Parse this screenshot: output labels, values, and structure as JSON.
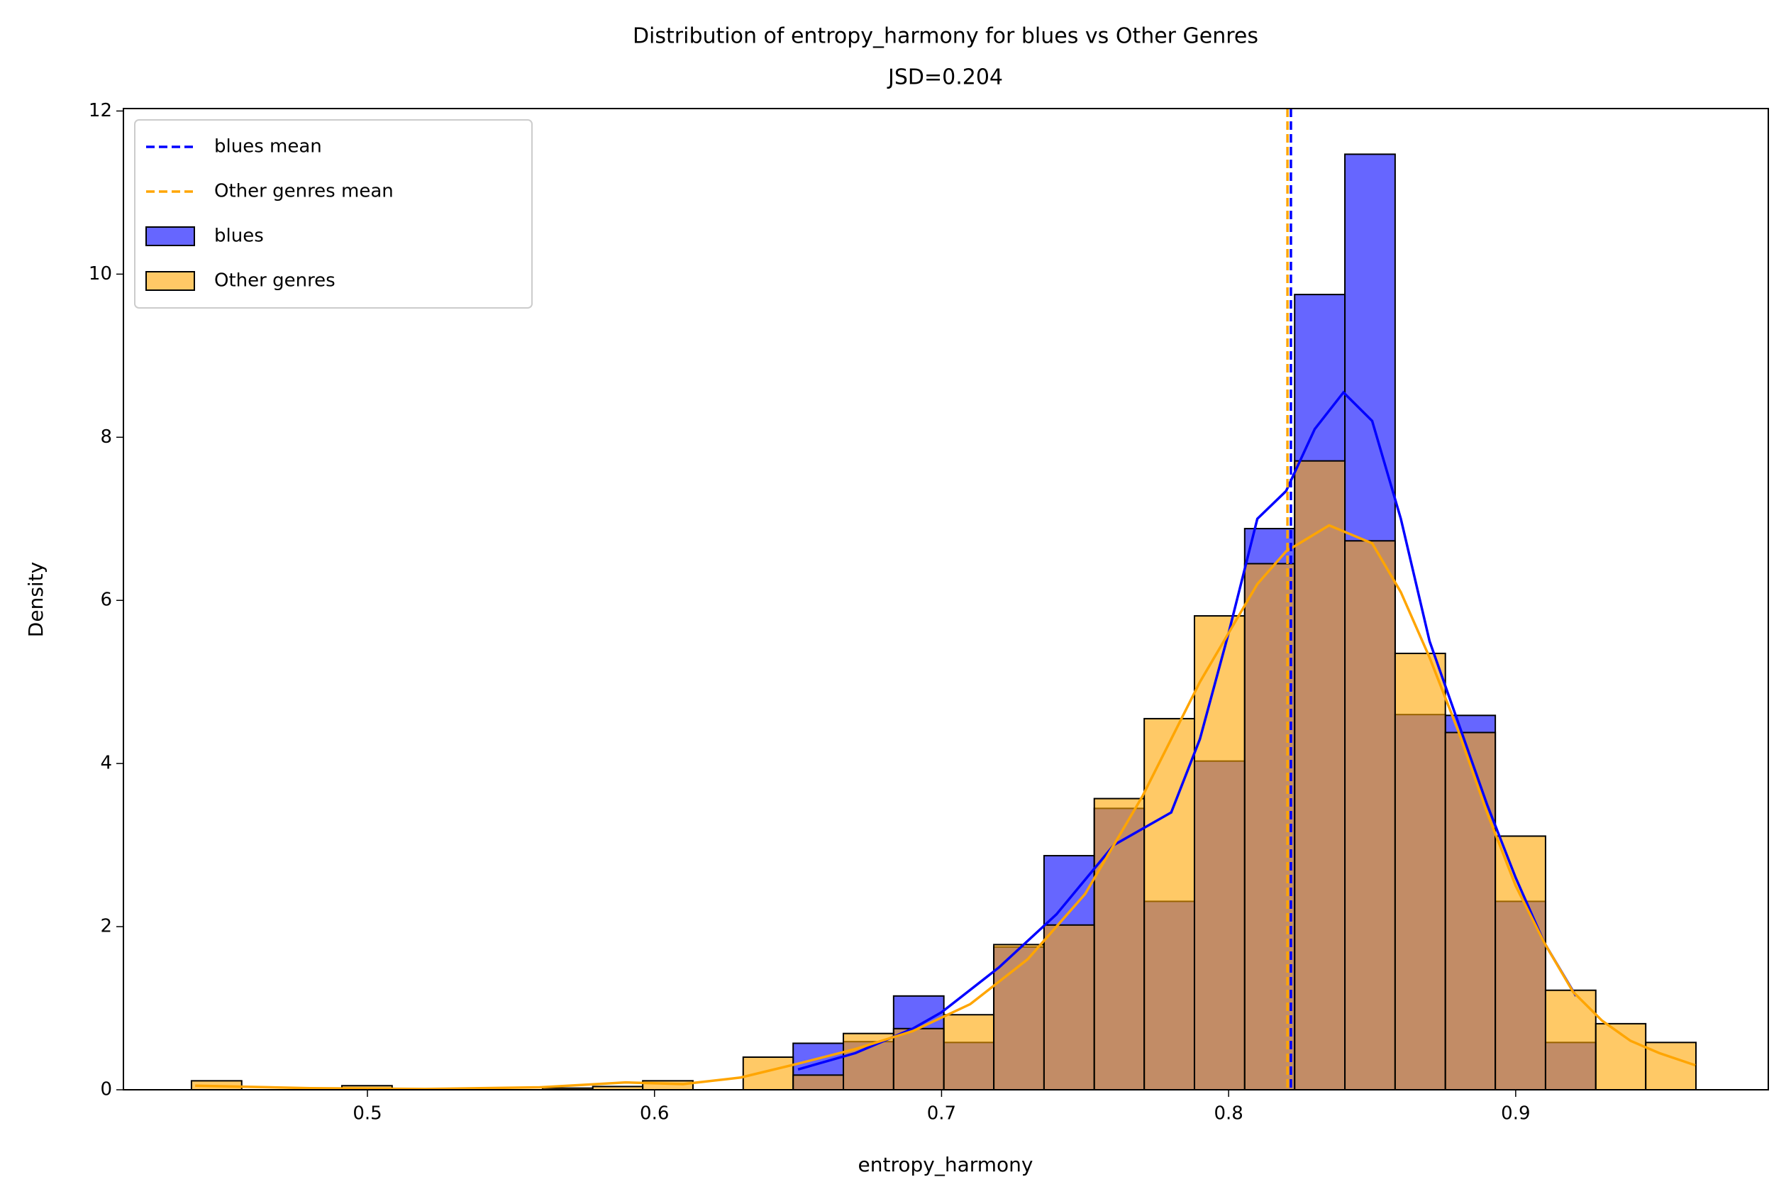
{
  "chart_data": {
    "type": "histogram",
    "title": "Distribution of entropy_harmony for blues vs Other Genres",
    "subtitle": "JSD=0.204",
    "xlabel": "entropy_harmony",
    "ylabel": "Density",
    "xlim": [
      0.415,
      0.988
    ],
    "ylim": [
      0,
      12.03
    ],
    "xticks": [
      0.5,
      0.6,
      0.7,
      0.8,
      0.9
    ],
    "yticks": [
      0,
      2,
      4,
      6,
      8,
      10,
      12
    ],
    "legend": "upper left",
    "bins": [
      0.4387,
      0.4562,
      0.4736,
      0.4911,
      0.5086,
      0.5261,
      0.5435,
      0.561,
      0.5785,
      0.5959,
      0.6134,
      0.6309,
      0.6483,
      0.6658,
      0.6833,
      0.7008,
      0.7182,
      0.7357,
      0.7532,
      0.7706,
      0.7881,
      0.8056,
      0.823,
      0.8405,
      0.858,
      0.8755,
      0.8929,
      0.9104,
      0.9279,
      0.9453,
      0.9628
    ],
    "mean_lines": [
      {
        "name": "blues mean",
        "color": "#0000ff",
        "value": 0.8217
      },
      {
        "name": "Other genres mean",
        "color": "#ffa500",
        "value": 0.8205
      }
    ],
    "series": [
      {
        "name": "blues",
        "color": "#0000ff",
        "values": [
          0,
          0,
          0,
          0,
          0,
          0,
          0,
          0,
          0,
          0,
          0,
          0,
          0.57,
          0.59,
          1.15,
          0.58,
          1.75,
          2.87,
          3.45,
          2.31,
          4.03,
          6.88,
          9.75,
          11.47,
          4.6,
          4.59,
          2.31,
          0.58,
          0,
          0
        ]
      },
      {
        "name": "Other genres",
        "color": "#ffa500",
        "values": [
          0.11,
          0,
          0,
          0.05,
          0,
          0,
          0,
          0.02,
          0.04,
          0.11,
          0,
          0.4,
          0.18,
          0.69,
          0.75,
          0.92,
          1.78,
          2.02,
          3.57,
          4.55,
          5.81,
          6.45,
          7.71,
          6.73,
          5.35,
          4.38,
          3.11,
          1.22,
          0.81,
          0.58
        ]
      }
    ],
    "kde": [
      {
        "color": "#0000ff",
        "x": [
          0.65,
          0.67,
          0.69,
          0.7,
          0.72,
          0.74,
          0.76,
          0.78,
          0.79,
          0.8,
          0.81,
          0.82,
          0.83,
          0.84,
          0.85,
          0.86,
          0.87,
          0.88,
          0.89,
          0.9,
          0.91,
          0.921
        ],
        "values": [
          0.25,
          0.45,
          0.75,
          0.95,
          1.5,
          2.15,
          3.0,
          3.4,
          4.3,
          5.6,
          7.0,
          7.34,
          8.1,
          8.55,
          8.2,
          7.0,
          5.5,
          4.5,
          3.5,
          2.6,
          1.8,
          1.15
        ]
      },
      {
        "color": "#ffa500",
        "x": [
          0.44,
          0.48,
          0.52,
          0.56,
          0.59,
          0.61,
          0.63,
          0.65,
          0.67,
          0.69,
          0.71,
          0.73,
          0.75,
          0.77,
          0.79,
          0.81,
          0.82,
          0.835,
          0.85,
          0.86,
          0.87,
          0.88,
          0.89,
          0.9,
          0.91,
          0.92,
          0.93,
          0.94,
          0.95,
          0.9626
        ],
        "values": [
          0.05,
          0.02,
          0.01,
          0.03,
          0.09,
          0.07,
          0.15,
          0.32,
          0.5,
          0.72,
          1.05,
          1.6,
          2.4,
          3.6,
          5.0,
          6.2,
          6.6,
          6.92,
          6.7,
          6.1,
          5.3,
          4.4,
          3.4,
          2.5,
          1.8,
          1.2,
          0.85,
          0.6,
          0.45,
          0.3
        ]
      }
    ]
  }
}
